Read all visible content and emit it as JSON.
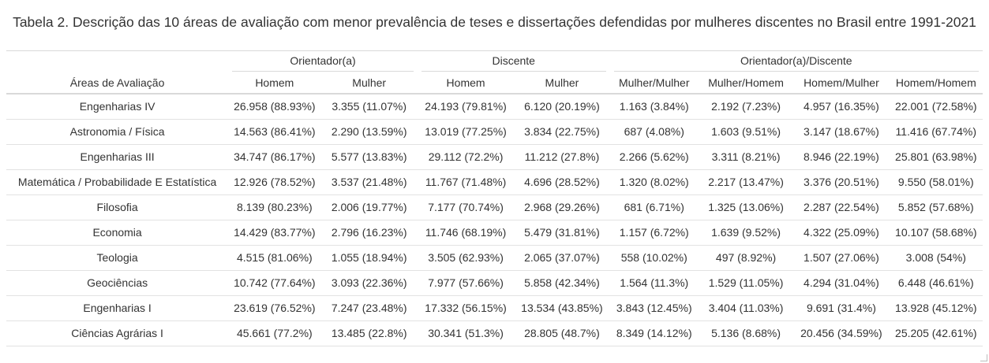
{
  "caption": "Tabela 2. Descrição das 10 áreas de avaliação com menor prevalência de teses e dissertações defendidas por mulheres discentes no Brasil entre 1991-2021",
  "header": {
    "area_label": "Áreas de Avaliação",
    "groups": [
      "Orientador(a)",
      "Discente",
      "Orientador(a)/Discente"
    ],
    "columns": [
      "Homem",
      "Mulher",
      "Homem",
      "Mulher",
      "Mulher/Mulher",
      "Mulher/Homem",
      "Homem/Mulher",
      "Homem/Homem"
    ]
  },
  "rows": [
    {
      "area": "Engenharias IV",
      "cells": [
        "26.958 (88.93%)",
        "3.355 (11.07%)",
        "24.193 (79.81%)",
        "6.120 (20.19%)",
        "1.163 (3.84%)",
        "2.192 (7.23%)",
        "4.957 (16.35%)",
        "22.001 (72.58%)"
      ]
    },
    {
      "area": "Astronomia / Física",
      "cells": [
        "14.563 (86.41%)",
        "2.290 (13.59%)",
        "13.019 (77.25%)",
        "3.834 (22.75%)",
        "687 (4.08%)",
        "1.603 (9.51%)",
        "3.147 (18.67%)",
        "11.416 (67.74%)"
      ]
    },
    {
      "area": "Engenharias III",
      "cells": [
        "34.747 (86.17%)",
        "5.577 (13.83%)",
        "29.112 (72.2%)",
        "11.212 (27.8%)",
        "2.266 (5.62%)",
        "3.311 (8.21%)",
        "8.946 (22.19%)",
        "25.801 (63.98%)"
      ]
    },
    {
      "area": "Matemática / Probabilidade E Estatística",
      "cells": [
        "12.926 (78.52%)",
        "3.537 (21.48%)",
        "11.767 (71.48%)",
        "4.696 (28.52%)",
        "1.320 (8.02%)",
        "2.217 (13.47%)",
        "3.376 (20.51%)",
        "9.550 (58.01%)"
      ]
    },
    {
      "area": "Filosofia",
      "cells": [
        "8.139 (80.23%)",
        "2.006 (19.77%)",
        "7.177 (70.74%)",
        "2.968 (29.26%)",
        "681 (6.71%)",
        "1.325 (13.06%)",
        "2.287 (22.54%)",
        "5.852 (57.68%)"
      ]
    },
    {
      "area": "Economia",
      "cells": [
        "14.429 (83.77%)",
        "2.796 (16.23%)",
        "11.746 (68.19%)",
        "5.479 (31.81%)",
        "1.157 (6.72%)",
        "1.639 (9.52%)",
        "4.322 (25.09%)",
        "10.107 (58.68%)"
      ]
    },
    {
      "area": "Teologia",
      "cells": [
        "4.515 (81.06%)",
        "1.055 (18.94%)",
        "3.505 (62.93%)",
        "2.065 (37.07%)",
        "558 (10.02%)",
        "497 (8.92%)",
        "1.507 (27.06%)",
        "3.008 (54%)"
      ]
    },
    {
      "area": "Geociências",
      "cells": [
        "10.742 (77.64%)",
        "3.093 (22.36%)",
        "7.977 (57.66%)",
        "5.858 (42.34%)",
        "1.564 (11.3%)",
        "1.529 (11.05%)",
        "4.294 (31.04%)",
        "6.448 (46.61%)"
      ]
    },
    {
      "area": "Engenharias I",
      "cells": [
        "23.619 (76.52%)",
        "7.247 (23.48%)",
        "17.332 (56.15%)",
        "13.534 (43.85%)",
        "3.843 (12.45%)",
        "3.404 (11.03%)",
        "9.691 (31.4%)",
        "13.928 (45.12%)"
      ]
    },
    {
      "area": "Ciências Agrárias I",
      "cells": [
        "45.661 (77.2%)",
        "13.485 (22.8%)",
        "30.341 (51.3%)",
        "28.805 (48.7%)",
        "8.349 (14.12%)",
        "5.136 (8.68%)",
        "20.456 (34.59%)",
        "25.205 (42.61%)"
      ]
    }
  ]
}
